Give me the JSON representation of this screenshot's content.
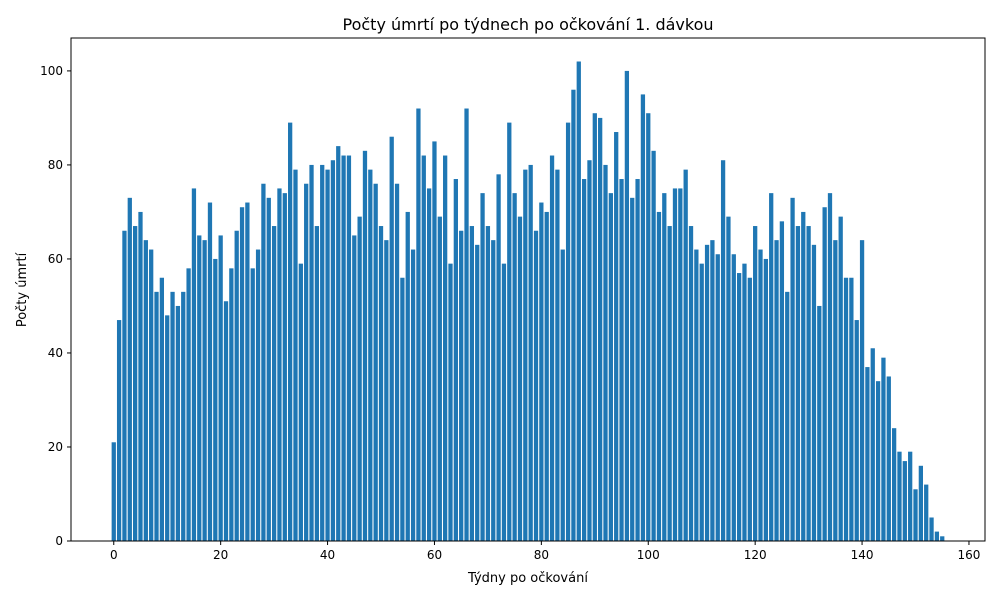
{
  "chart_data": {
    "type": "bar",
    "title": "Počty úmrtí po týdnech po očkování 1. dávkou",
    "xlabel": "Týdny po očkování",
    "ylabel": "Počty úmrtí",
    "bar_color": "#1f77b4",
    "xlim": [
      -8,
      163
    ],
    "ylim": [
      0,
      107
    ],
    "xticks": [
      0,
      20,
      40,
      60,
      80,
      100,
      120,
      140,
      160
    ],
    "yticks": [
      0,
      20,
      40,
      60,
      80,
      100
    ],
    "grid": false,
    "x": [
      0,
      1,
      2,
      3,
      4,
      5,
      6,
      7,
      8,
      9,
      10,
      11,
      12,
      13,
      14,
      15,
      16,
      17,
      18,
      19,
      20,
      21,
      22,
      23,
      24,
      25,
      26,
      27,
      28,
      29,
      30,
      31,
      32,
      33,
      34,
      35,
      36,
      37,
      38,
      39,
      40,
      41,
      42,
      43,
      44,
      45,
      46,
      47,
      48,
      49,
      50,
      51,
      52,
      53,
      54,
      55,
      56,
      57,
      58,
      59,
      60,
      61,
      62,
      63,
      64,
      65,
      66,
      67,
      68,
      69,
      70,
      71,
      72,
      73,
      74,
      75,
      76,
      77,
      78,
      79,
      80,
      81,
      82,
      83,
      84,
      85,
      86,
      87,
      88,
      89,
      90,
      91,
      92,
      93,
      94,
      95,
      96,
      97,
      98,
      99,
      100,
      101,
      102,
      103,
      104,
      105,
      106,
      107,
      108,
      109,
      110,
      111,
      112,
      113,
      114,
      115,
      116,
      117,
      118,
      119,
      120,
      121,
      122,
      123,
      124,
      125,
      126,
      127,
      128,
      129,
      130,
      131,
      132,
      133,
      134,
      135,
      136,
      137,
      138,
      139,
      140,
      141,
      142,
      143,
      144,
      145,
      146,
      147,
      148,
      149,
      150,
      151,
      152,
      153,
      154,
      155
    ],
    "values": [
      21,
      47,
      66,
      73,
      67,
      70,
      64,
      62,
      53,
      56,
      48,
      53,
      50,
      53,
      58,
      75,
      65,
      64,
      72,
      60,
      65,
      51,
      58,
      66,
      71,
      72,
      58,
      62,
      76,
      73,
      67,
      75,
      74,
      89,
      79,
      59,
      76,
      80,
      67,
      80,
      79,
      81,
      84,
      82,
      82,
      65,
      69,
      83,
      79,
      76,
      67,
      64,
      86,
      76,
      56,
      70,
      62,
      92,
      82,
      75,
      85,
      69,
      82,
      59,
      77,
      66,
      92,
      67,
      63,
      74,
      67,
      64,
      78,
      59,
      89,
      74,
      69,
      79,
      80,
      66,
      72,
      70,
      82,
      79,
      62,
      89,
      96,
      102,
      77,
      81,
      91,
      90,
      80,
      74,
      87,
      77,
      100,
      73,
      77,
      95,
      91,
      83,
      70,
      74,
      67,
      75,
      75,
      79,
      67,
      62,
      59,
      63,
      64,
      61,
      81,
      69,
      61,
      57,
      59,
      56,
      67,
      62,
      60,
      74,
      64,
      68,
      53,
      73,
      67,
      70,
      67,
      63,
      50,
      71,
      74,
      64,
      69,
      56,
      56,
      47,
      64,
      37,
      41,
      34,
      39,
      35,
      24,
      19,
      17,
      19,
      11,
      16,
      12,
      5,
      2,
      1
    ]
  }
}
